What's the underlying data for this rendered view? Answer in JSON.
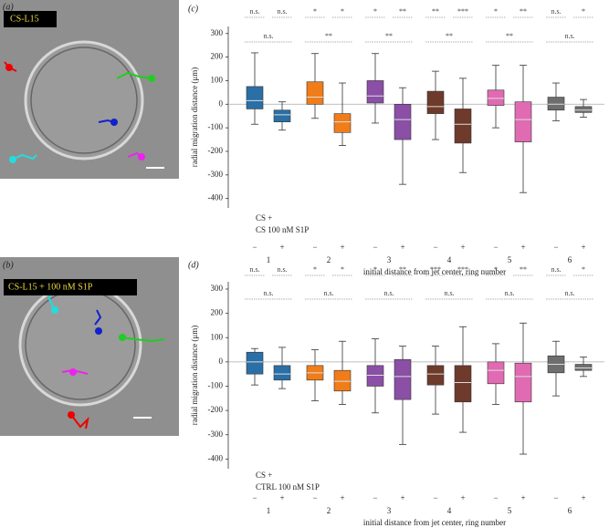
{
  "panels": [
    {
      "label": "(a)",
      "caption": "CS-L15"
    },
    {
      "label": "(b)",
      "caption": "CS-L15 + 100 nM S1P"
    }
  ],
  "chart_data": [
    {
      "type": "box",
      "panel_label": "(c)",
      "ylabel": "radial migration distance (μm)",
      "xlabel": "initial distance from jet center, ring number",
      "condition": [
        "CS +",
        "CS 100 nM S1P"
      ],
      "groups": [
        "1",
        "2",
        "3",
        "4",
        "5",
        "6"
      ],
      "categories": [
        "−",
        "+",
        "−",
        "+",
        "−",
        "+",
        "−",
        "+",
        "−",
        "+",
        "−",
        "+"
      ],
      "colors": [
        "#2a6fa6",
        "#f07d1a",
        "#8b4fa6",
        "#6e3a2b",
        "#e06bb2",
        "#6e6e6e"
      ],
      "stats": [
        {
          "low": -85,
          "q1": -20,
          "median": 15,
          "q3": 75,
          "high": 218
        },
        {
          "low": -110,
          "q1": -75,
          "median": -45,
          "q3": -25,
          "high": 10
        },
        {
          "low": -60,
          "q1": 0,
          "median": 30,
          "q3": 95,
          "high": 215
        },
        {
          "low": -175,
          "q1": -120,
          "median": -75,
          "q3": -40,
          "high": 90
        },
        {
          "low": -80,
          "q1": 5,
          "median": 35,
          "q3": 100,
          "high": 215
        },
        {
          "low": -340,
          "q1": -150,
          "median": -65,
          "q3": 0,
          "high": 70
        },
        {
          "low": -150,
          "q1": -40,
          "median": -10,
          "q3": 55,
          "high": 140
        },
        {
          "low": -290,
          "q1": -165,
          "median": -85,
          "q3": -20,
          "high": 110
        },
        {
          "low": -100,
          "q1": -5,
          "median": 25,
          "q3": 60,
          "high": 165
        },
        {
          "low": -375,
          "q1": -160,
          "median": -65,
          "q3": 10,
          "high": 165
        },
        {
          "low": -70,
          "q1": -25,
          "median": 0,
          "q3": 30,
          "high": 90
        },
        {
          "low": -55,
          "q1": -35,
          "median": -25,
          "q3": -10,
          "high": 20
        }
      ],
      "pair_significance": [
        "n.s.",
        "n.s.",
        "*",
        "*",
        "*",
        "**",
        "**",
        "***",
        "*",
        "**",
        "n.s.",
        "*"
      ],
      "ring_significance": [
        "n.s.",
        "**",
        "**",
        "**",
        "**",
        "n.s."
      ],
      "ylim": [
        -440,
        330
      ],
      "yticks": [
        -400,
        -300,
        -200,
        -100,
        0,
        100,
        200,
        300
      ]
    },
    {
      "type": "box",
      "panel_label": "(d)",
      "ylabel": "radial migration distance (μm)",
      "xlabel": "initial distance from jet center, ring number",
      "condition": [
        "CS +",
        "CTRL 100 nM S1P"
      ],
      "groups": [
        "1",
        "2",
        "3",
        "4",
        "5",
        "6"
      ],
      "categories": [
        "−",
        "+",
        "−",
        "+",
        "−",
        "+",
        "−",
        "+",
        "−",
        "+",
        "−",
        "+"
      ],
      "colors": [
        "#2a6fa6",
        "#f07d1a",
        "#8b4fa6",
        "#6e3a2b",
        "#e06bb2",
        "#6e6e6e"
      ],
      "stats": [
        {
          "low": -95,
          "q1": -50,
          "median": 0,
          "q3": 40,
          "high": 55
        },
        {
          "low": -110,
          "q1": -75,
          "median": -50,
          "q3": -15,
          "high": 60
        },
        {
          "low": -160,
          "q1": -75,
          "median": -45,
          "q3": -15,
          "high": 50
        },
        {
          "low": -175,
          "q1": -120,
          "median": -80,
          "q3": -35,
          "high": 85
        },
        {
          "low": -210,
          "q1": -100,
          "median": -55,
          "q3": -15,
          "high": 95
        },
        {
          "low": -340,
          "q1": -155,
          "median": -60,
          "q3": 10,
          "high": 65
        },
        {
          "low": -215,
          "q1": -95,
          "median": -50,
          "q3": -15,
          "high": 65
        },
        {
          "low": -290,
          "q1": -165,
          "median": -85,
          "q3": -15,
          "high": 145
        },
        {
          "low": -175,
          "q1": -90,
          "median": -35,
          "q3": 0,
          "high": 75
        },
        {
          "low": -380,
          "q1": -165,
          "median": -60,
          "q3": -5,
          "high": 160
        },
        {
          "low": -140,
          "q1": -45,
          "median": -10,
          "q3": 25,
          "high": 85
        },
        {
          "low": -60,
          "q1": -35,
          "median": -25,
          "q3": -10,
          "high": 20
        }
      ],
      "pair_significance": [
        "n.s.",
        "n.s.",
        "*",
        "*",
        "*",
        "**",
        "***",
        "***",
        "*",
        "**",
        "n.s.",
        "*"
      ],
      "ring_significance": [
        "n.s.",
        "n.s.",
        "n.s.",
        "n.s.",
        "n.s.",
        "n.s."
      ],
      "ylim": [
        -440,
        330
      ],
      "yticks": [
        -400,
        -300,
        -200,
        -100,
        0,
        100,
        200,
        300
      ]
    }
  ]
}
